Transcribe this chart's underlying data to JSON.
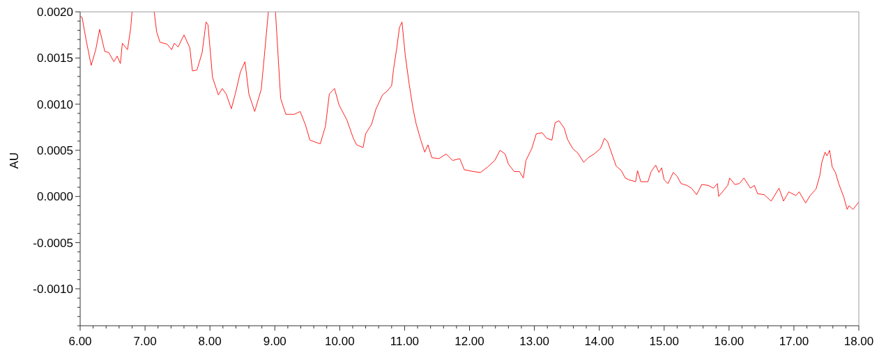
{
  "chart_data": {
    "type": "line",
    "ylabel": "AU",
    "color": "#ff2020",
    "x": [
      6.0,
      6.03,
      6.09,
      6.17,
      6.24,
      6.3,
      6.38,
      6.44,
      6.52,
      6.57,
      6.62,
      6.65,
      6.73,
      6.78,
      6.8,
      6.97,
      7.14,
      7.18,
      7.23,
      7.34,
      7.41,
      7.45,
      7.51,
      7.6,
      7.69,
      7.73,
      7.8,
      7.88,
      7.94,
      7.97,
      8.04,
      8.13,
      8.19,
      8.25,
      8.33,
      8.39,
      8.47,
      8.54,
      8.6,
      8.69,
      8.79,
      8.82,
      8.9,
      8.95,
      9.01,
      9.09,
      9.17,
      9.3,
      9.39,
      9.47,
      9.54,
      9.7,
      9.78,
      9.84,
      9.92,
      9.99,
      10.11,
      10.21,
      10.26,
      10.36,
      10.4,
      10.49,
      10.56,
      10.66,
      10.73,
      10.8,
      10.83,
      10.88,
      10.92,
      10.96,
      11.01,
      11.07,
      11.13,
      11.18,
      11.25,
      11.31,
      11.36,
      11.42,
      11.53,
      11.64,
      11.74,
      11.85,
      11.92,
      12.06,
      12.17,
      12.28,
      12.39,
      12.47,
      12.55,
      12.6,
      12.69,
      12.77,
      12.83,
      12.87,
      12.96,
      13.03,
      13.12,
      13.19,
      13.27,
      13.32,
      13.38,
      13.46,
      13.51,
      13.59,
      13.67,
      13.76,
      13.83,
      13.92,
      14.02,
      14.08,
      14.13,
      14.19,
      14.26,
      14.34,
      14.4,
      14.46,
      14.56,
      14.59,
      14.64,
      14.75,
      14.8,
      14.87,
      14.92,
      14.96,
      15.0,
      15.06,
      15.14,
      15.2,
      15.26,
      15.35,
      15.42,
      15.5,
      15.58,
      15.68,
      15.76,
      15.82,
      15.84,
      15.98,
      16.01,
      16.09,
      16.16,
      16.23,
      16.33,
      16.39,
      16.44,
      16.54,
      16.65,
      16.77,
      16.84,
      16.92,
      17.03,
      17.08,
      17.18,
      17.25,
      17.34,
      17.4,
      17.43,
      17.48,
      17.51,
      17.55,
      17.59,
      17.64,
      17.69,
      17.77,
      17.82,
      17.85,
      17.91,
      18.0
    ],
    "values": [
      0.00195,
      0.00194,
      0.0017,
      0.00142,
      0.00159,
      0.00181,
      0.00157,
      0.00156,
      0.00146,
      0.00152,
      0.00144,
      0.00166,
      0.00159,
      0.00183,
      0.002,
      null,
      0.002,
      0.00178,
      0.00167,
      0.00165,
      0.00159,
      0.00166,
      0.00162,
      0.00175,
      0.00161,
      0.00136,
      0.00137,
      0.00156,
      0.00189,
      0.00186,
      0.00129,
      0.0011,
      0.00117,
      0.00111,
      0.00095,
      0.00111,
      0.00135,
      0.00146,
      0.00111,
      0.00092,
      0.00116,
      0.00138,
      0.002,
      null,
      0.002,
      0.00106,
      0.00089,
      0.00089,
      0.00092,
      0.00078,
      0.00061,
      0.00057,
      0.00076,
      0.00111,
      0.00117,
      0.00099,
      0.00083,
      0.00063,
      0.00056,
      0.00053,
      0.00068,
      0.00078,
      0.00095,
      0.0011,
      0.00114,
      0.0012,
      0.00138,
      0.00161,
      0.00183,
      0.00189,
      0.00153,
      0.00122,
      0.00095,
      0.00078,
      0.00061,
      0.00048,
      0.00056,
      0.00042,
      0.00041,
      0.00046,
      0.00039,
      0.00041,
      0.00029,
      0.00027,
      0.00026,
      0.00032,
      0.00039,
      0.0005,
      0.00046,
      0.00035,
      0.00027,
      0.00027,
      0.0002,
      0.00039,
      0.00052,
      0.00068,
      0.00069,
      0.00063,
      0.00061,
      0.0008,
      0.00082,
      0.00074,
      0.00062,
      0.00052,
      0.00047,
      0.00037,
      0.00042,
      0.00046,
      0.00052,
      0.00063,
      0.00059,
      0.00047,
      0.00033,
      0.00028,
      0.0002,
      0.00018,
      0.00016,
      0.00028,
      0.00016,
      0.00016,
      0.00027,
      0.00034,
      0.00026,
      0.00031,
      0.00018,
      0.00014,
      0.00026,
      0.00022,
      0.00014,
      0.00012,
      9e-05,
      2e-05,
      0.00013,
      0.00012,
      9e-05,
      0.00014,
      0.0,
      0.00012,
      0.0002,
      0.00013,
      0.00014,
      0.0002,
      9e-05,
      0.00012,
      3e-05,
      2e-05,
      -5e-05,
      9e-05,
      -5e-05,
      5e-05,
      1e-05,
      5e-05,
      -7e-05,
      1e-05,
      8e-05,
      0.00023,
      0.00037,
      0.00048,
      0.00044,
      0.0005,
      0.00032,
      0.00026,
      0.00014,
      -1e-05,
      -0.00014,
      -0.0001,
      -0.00014,
      -6e-05
    ],
    "xlim": [
      6,
      18
    ],
    "xticks": [
      {
        "value": 6,
        "label": "6.00"
      },
      {
        "value": 6.2,
        "label": null
      },
      {
        "value": 6.4,
        "label": null
      },
      {
        "value": 6.6,
        "label": null
      },
      {
        "value": 6.8,
        "label": null
      },
      {
        "value": 7,
        "label": "7.00"
      },
      {
        "value": 7.2,
        "label": null
      },
      {
        "value": 7.4,
        "label": null
      },
      {
        "value": 7.6,
        "label": null
      },
      {
        "value": 7.8,
        "label": null
      },
      {
        "value": 8,
        "label": "8.00"
      },
      {
        "value": 8.2,
        "label": null
      },
      {
        "value": 8.4,
        "label": null
      },
      {
        "value": 8.6,
        "label": null
      },
      {
        "value": 8.8,
        "label": null
      },
      {
        "value": 9,
        "label": "9.00"
      },
      {
        "value": 9.2,
        "label": null
      },
      {
        "value": 9.4,
        "label": null
      },
      {
        "value": 9.6,
        "label": null
      },
      {
        "value": 9.8,
        "label": null
      },
      {
        "value": 10,
        "label": "10.00"
      },
      {
        "value": 10.2,
        "label": null
      },
      {
        "value": 10.4,
        "label": null
      },
      {
        "value": 10.6,
        "label": null
      },
      {
        "value": 10.8,
        "label": null
      },
      {
        "value": 11,
        "label": "11.00"
      },
      {
        "value": 11.2,
        "label": null
      },
      {
        "value": 11.4,
        "label": null
      },
      {
        "value": 11.6,
        "label": null
      },
      {
        "value": 11.8,
        "label": null
      },
      {
        "value": 12,
        "label": "12.00"
      },
      {
        "value": 12.2,
        "label": null
      },
      {
        "value": 12.4,
        "label": null
      },
      {
        "value": 12.6,
        "label": null
      },
      {
        "value": 12.8,
        "label": null
      },
      {
        "value": 13,
        "label": "13.00"
      },
      {
        "value": 13.2,
        "label": null
      },
      {
        "value": 13.4,
        "label": null
      },
      {
        "value": 13.6,
        "label": null
      },
      {
        "value": 13.8,
        "label": null
      },
      {
        "value": 14,
        "label": "14.00"
      },
      {
        "value": 14.2,
        "label": null
      },
      {
        "value": 14.4,
        "label": null
      },
      {
        "value": 14.6,
        "label": null
      },
      {
        "value": 14.8,
        "label": null
      },
      {
        "value": 15,
        "label": "15.00"
      },
      {
        "value": 15.2,
        "label": null
      },
      {
        "value": 15.4,
        "label": null
      },
      {
        "value": 15.6,
        "label": null
      },
      {
        "value": 15.8,
        "label": null
      },
      {
        "value": 16,
        "label": "16.00"
      },
      {
        "value": 16.2,
        "label": null
      },
      {
        "value": 16.4,
        "label": null
      },
      {
        "value": 16.6,
        "label": null
      },
      {
        "value": 16.8,
        "label": null
      },
      {
        "value": 17,
        "label": "17.00"
      },
      {
        "value": 17.2,
        "label": null
      },
      {
        "value": 17.4,
        "label": null
      },
      {
        "value": 17.6,
        "label": null
      },
      {
        "value": 17.8,
        "label": null
      },
      {
        "value": 18,
        "label": "18.00"
      }
    ],
    "ylim": [
      -0.0014,
      0.002
    ],
    "yticks": [
      {
        "value": -0.0014,
        "label": null
      },
      {
        "value": -0.0013,
        "label": null
      },
      {
        "value": -0.0012,
        "label": null
      },
      {
        "value": -0.0011,
        "label": null
      },
      {
        "value": -0.001,
        "label": "-0.0010"
      },
      {
        "value": -0.0009,
        "label": null
      },
      {
        "value": -0.0008,
        "label": null
      },
      {
        "value": -0.0007,
        "label": null
      },
      {
        "value": -0.0006,
        "label": null
      },
      {
        "value": -0.0005,
        "label": "-0.0005"
      },
      {
        "value": -0.0004,
        "label": null
      },
      {
        "value": -0.0003,
        "label": null
      },
      {
        "value": -0.0002,
        "label": null
      },
      {
        "value": -0.0001,
        "label": null
      },
      {
        "value": 0,
        "label": "0.0000"
      },
      {
        "value": 0.0001,
        "label": null
      },
      {
        "value": 0.0002,
        "label": null
      },
      {
        "value": 0.0003,
        "label": null
      },
      {
        "value": 0.0004,
        "label": null
      },
      {
        "value": 0.0005,
        "label": "0.0005"
      },
      {
        "value": 0.0006,
        "label": null
      },
      {
        "value": 0.0007,
        "label": null
      },
      {
        "value": 0.0008,
        "label": null
      },
      {
        "value": 0.0009,
        "label": null
      },
      {
        "value": 0.001,
        "label": "0.0010"
      },
      {
        "value": 0.0011,
        "label": null
      },
      {
        "value": 0.0012,
        "label": null
      },
      {
        "value": 0.0013,
        "label": null
      },
      {
        "value": 0.0014,
        "label": null
      },
      {
        "value": 0.0015,
        "label": "0.0015"
      },
      {
        "value": 0.0016,
        "label": null
      },
      {
        "value": 0.0017,
        "label": null
      },
      {
        "value": 0.0018,
        "label": null
      },
      {
        "value": 0.0019,
        "label": null
      },
      {
        "value": 0.002,
        "label": "0.0020"
      }
    ]
  }
}
